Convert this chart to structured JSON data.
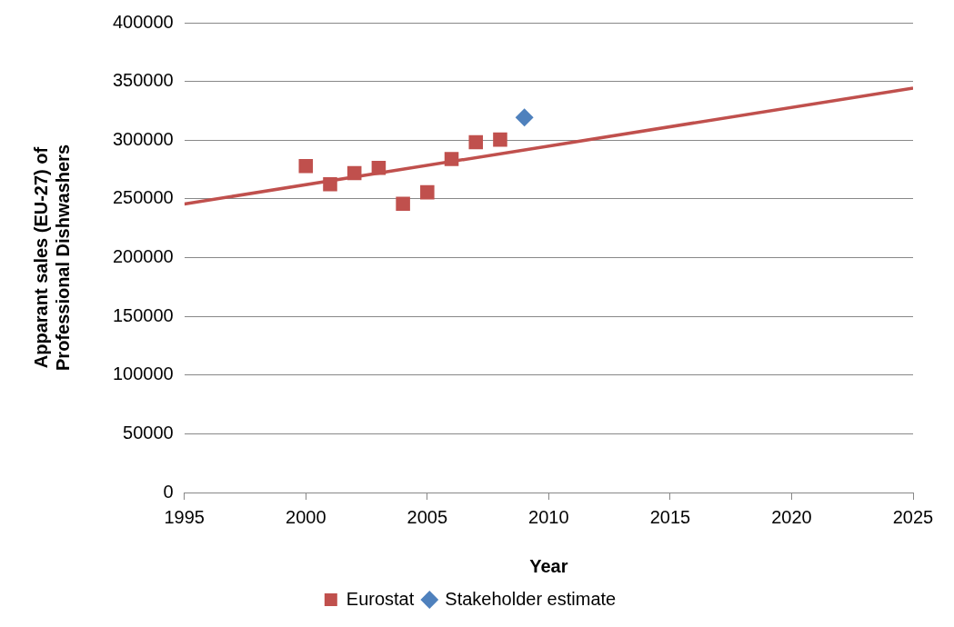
{
  "chart_data": {
    "type": "scatter",
    "xlabel": "Year",
    "ylabel": "Apparant sales (EU-27) of Professional Dishwashers",
    "xlim": [
      1995,
      2025
    ],
    "xticks": [
      1995,
      2000,
      2005,
      2010,
      2015,
      2020,
      2025
    ],
    "ylim": [
      0,
      400000
    ],
    "yticks": [
      0,
      50000,
      100000,
      150000,
      200000,
      250000,
      300000,
      350000,
      400000
    ],
    "grid": "y",
    "legend": "bottom",
    "series": [
      {
        "name": "Eurostat",
        "type": "scatter",
        "marker": "square",
        "color": "#c0504d",
        "x": [
          2000,
          2001,
          2002,
          2003,
          2004,
          2005,
          2006,
          2007,
          2008
        ],
        "values": [
          278000,
          262500,
          272000,
          276400,
          245800,
          255600,
          283900,
          298300,
          300500
        ]
      },
      {
        "name": "Stakeholder estimate",
        "type": "scatter",
        "marker": "diamond",
        "color": "#4f81bd",
        "x": [
          2009
        ],
        "values": [
          319400
        ]
      },
      {
        "type": "line",
        "marker": "none",
        "color": "#c0504d",
        "x": [
          1995,
          2025
        ],
        "values": [
          245600,
          344400
        ]
      }
    ]
  }
}
